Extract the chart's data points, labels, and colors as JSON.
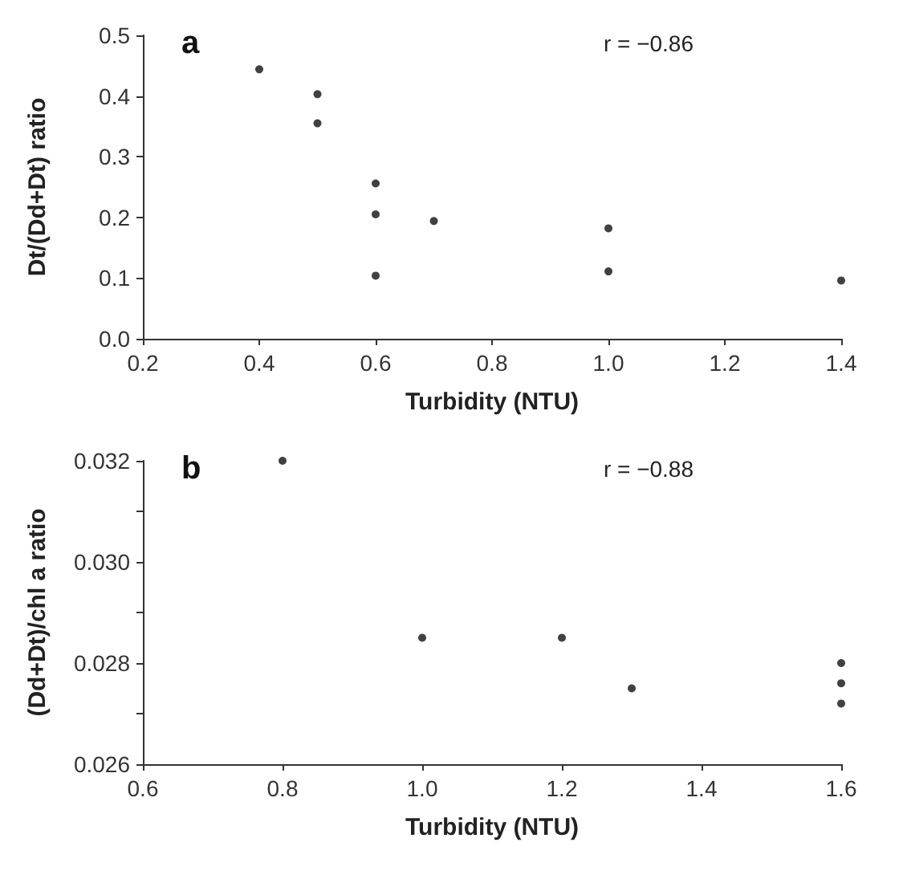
{
  "chart_data": [
    {
      "type": "scatter",
      "title": "a",
      "xlabel": "Turbidity (NTU)",
      "ylabel": "Dt/(Dd+Dt) ratio",
      "annotations": [
        "r = −0.86"
      ],
      "x": [
        0.4,
        0.5,
        0.5,
        0.6,
        0.6,
        0.6,
        0.7,
        1.0,
        1.0,
        1.4
      ],
      "series": [
        {
          "color": "#111111",
          "values": [
            0.444,
            0.403,
            0.355,
            0.256,
            0.205,
            0.104,
            0.194,
            0.182,
            0.111,
            0.096
          ]
        }
      ],
      "xlim": [
        0.2,
        1.4
      ],
      "xticks": [
        0.2,
        0.4,
        0.6,
        0.8,
        {
          "value": 1,
          "label": "1.0"
        },
        1.2,
        1.4
      ],
      "ylim": [
        0,
        0.5
      ],
      "yticks": [
        {
          "value": 0,
          "label": "0.0"
        },
        0.1,
        0.2,
        0.3,
        0.4,
        0.5
      ],
      "marker": "circle",
      "grid": false
    },
    {
      "type": "scatter",
      "title": "b",
      "xlabel": "Turbidity (NTU)",
      "ylabel": "(Dd+Dt)/chl a ratio",
      "annotations": [
        "r = −0.88"
      ],
      "x": [
        0.8,
        1.0,
        1.2,
        1.3,
        1.6,
        1.6,
        1.6
      ],
      "series": [
        {
          "color": "#111111",
          "values": [
            0.032,
            0.0285,
            0.0285,
            0.0275,
            0.028,
            0.0276,
            0.0272
          ]
        }
      ],
      "xlim": [
        0.6,
        1.6
      ],
      "xticks": [
        0.6,
        0.8,
        {
          "value": 1,
          "label": "1.0"
        },
        1.2,
        1.4,
        1.6
      ],
      "ylim": [
        0.026,
        0.032
      ],
      "yticks": [
        0.026,
        {
          "value": 0.027,
          "label": null
        },
        0.028,
        {
          "value": 0.029,
          "label": null
        },
        {
          "value": 0.03,
          "label": "0.030"
        },
        {
          "value": 0.031,
          "label": null
        },
        0.032
      ],
      "marker": "circle",
      "grid": false
    }
  ]
}
